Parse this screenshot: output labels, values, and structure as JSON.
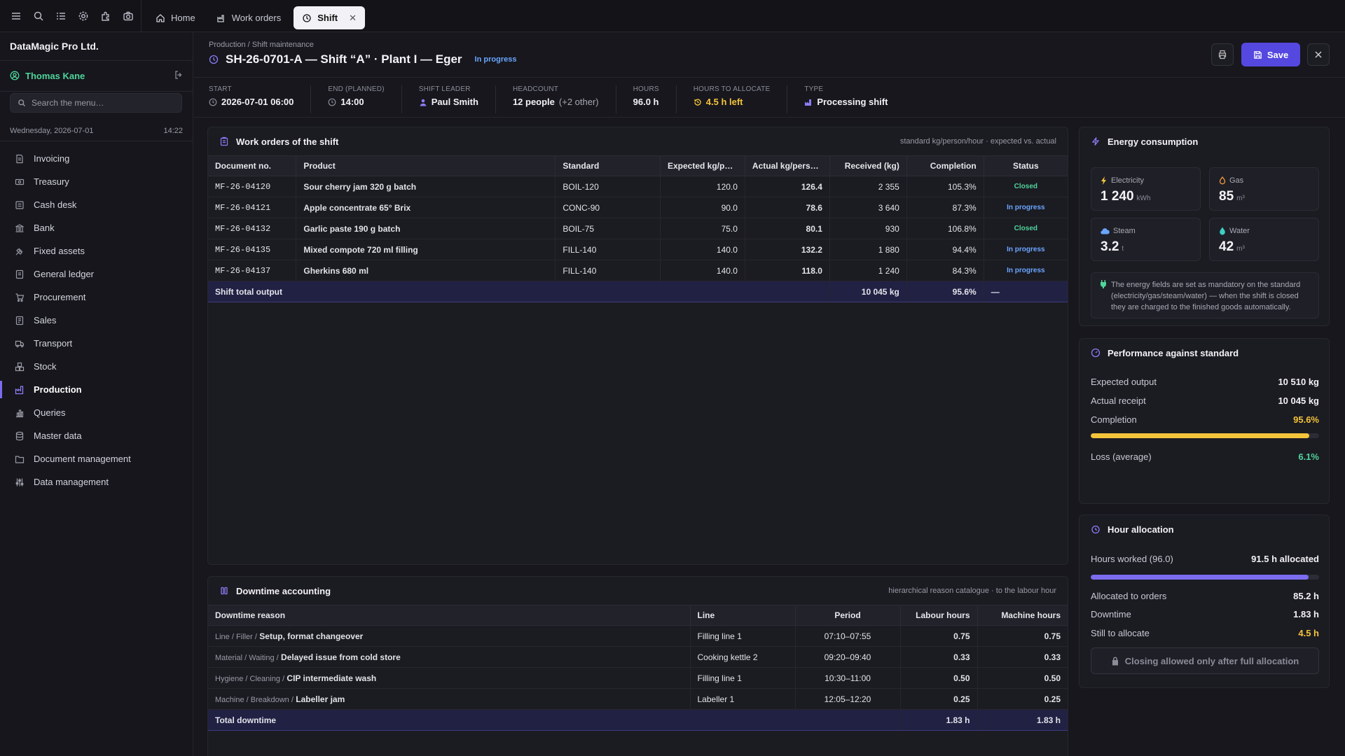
{
  "tabs": [
    {
      "label": "Home",
      "icon": "home-icon"
    },
    {
      "label": "Work orders",
      "icon": "work-orders-icon"
    },
    {
      "label": "Shift",
      "icon": "shift-icon",
      "close": "✕"
    }
  ],
  "sidebar": {
    "company": "DataMagic Pro Ltd.",
    "user": "Thomas Kane",
    "search_placeholder": "Search the menu…",
    "date": "Wednesday, 2026-07-01",
    "time": "14:22",
    "items": [
      {
        "label": "Invoicing",
        "icon": "invoice-icon"
      },
      {
        "label": "Treasury",
        "icon": "treasury-icon"
      },
      {
        "label": "Cash desk",
        "icon": "cash-desk-icon"
      },
      {
        "label": "Bank",
        "icon": "bank-icon"
      },
      {
        "label": "Fixed assets",
        "icon": "fixed-assets-icon"
      },
      {
        "label": "General ledger",
        "icon": "ledger-icon"
      },
      {
        "label": "Procurement",
        "icon": "cart-icon"
      },
      {
        "label": "Sales",
        "icon": "sales-icon"
      },
      {
        "label": "Transport",
        "icon": "truck-icon"
      },
      {
        "label": "Stock",
        "icon": "stock-icon"
      },
      {
        "label": "Production",
        "icon": "factory-icon",
        "active": true
      },
      {
        "label": "Queries",
        "icon": "chart-icon"
      },
      {
        "label": "Master data",
        "icon": "database-icon"
      },
      {
        "label": "Document management",
        "icon": "folder-icon"
      },
      {
        "label": "Data management",
        "icon": "sliders-icon"
      }
    ]
  },
  "header": {
    "breadcrumb": "Production / Shift maintenance",
    "title": "SH-26-0701-A — Shift “A” · Plant I — Eger",
    "state": "In progress",
    "save_label": "Save"
  },
  "stats": [
    {
      "key": "Start",
      "value": "2026-07-01 06:00",
      "icon": "clock-icon"
    },
    {
      "key": "End (planned)",
      "value": "14:00",
      "icon": "clock-icon"
    },
    {
      "key": "Shift leader",
      "value": "Paul Smith",
      "icon": "person-icon"
    },
    {
      "key": "Headcount",
      "value": "12 people",
      "extra": "(+2 other)"
    },
    {
      "key": "Hours",
      "value": "96.0 h"
    },
    {
      "key": "Hours to allocate",
      "value": "4.5 h left",
      "icon": "history-icon"
    },
    {
      "key": "Type",
      "value": "Processing shift",
      "icon": "factory-icon"
    }
  ],
  "work_orders": {
    "title": "Work orders of the shift",
    "note": "standard kg/person/hour · expected vs. actual",
    "columns": [
      "Document no.",
      "Product",
      "Standard",
      "Expected kg/p…",
      "Actual kg/pers…",
      "Received (kg)",
      "Completion",
      "Status"
    ],
    "rows": [
      [
        "MF-26-04120",
        "Sour cherry jam 320 g batch",
        "BOIL-120",
        "120.0",
        "126.4",
        "2 355",
        "105.3%",
        "Closed"
      ],
      [
        "MF-26-04121",
        "Apple concentrate 65° Brix",
        "CONC-90",
        "90.0",
        "78.6",
        "3 640",
        "87.3%",
        "In progress"
      ],
      [
        "MF-26-04132",
        "Garlic paste 190 g batch",
        "BOIL-75",
        "75.0",
        "80.1",
        "930",
        "106.8%",
        "Closed"
      ],
      [
        "MF-26-04135",
        "Mixed compote 720 ml filling",
        "FILL-140",
        "140.0",
        "132.2",
        "1 880",
        "94.4%",
        "In progress"
      ],
      [
        "MF-26-04137",
        "Gherkins 680 ml",
        "FILL-140",
        "140.0",
        "118.0",
        "1 240",
        "84.3%",
        "In progress"
      ]
    ],
    "total": {
      "label": "Shift total output",
      "received": "10 045 kg",
      "completion": "95.6%",
      "status": "—"
    }
  },
  "downtime": {
    "title": "Downtime accounting",
    "note": "hierarchical reason catalogue · to the labour hour",
    "columns": [
      "Downtime reason",
      "Line",
      "Period",
      "Labour hours",
      "Machine hours"
    ],
    "rows": [
      {
        "path": "Line / Filler /",
        "reason": "Setup, format changeover",
        "line": "Filling line 1",
        "period": "07:10–07:55",
        "labour": "0.75",
        "machine": "0.75"
      },
      {
        "path": "Material / Waiting /",
        "reason": "Delayed issue from cold store",
        "line": "Cooking kettle 2",
        "period": "09:20–09:40",
        "labour": "0.33",
        "machine": "0.33"
      },
      {
        "path": "Hygiene / Cleaning /",
        "reason": "CIP intermediate wash",
        "line": "Filling line 1",
        "period": "10:30–11:00",
        "labour": "0.50",
        "machine": "0.50"
      },
      {
        "path": "Machine / Breakdown /",
        "reason": "Labeller jam",
        "line": "Labeller 1",
        "period": "12:05–12:20",
        "labour": "0.25",
        "machine": "0.25"
      }
    ],
    "total": {
      "label": "Total downtime",
      "labour": "1.83 h",
      "machine": "1.83 h"
    }
  },
  "energy": {
    "title": "Energy consumption",
    "tiles": [
      {
        "label": "Electricity",
        "value": "1 240",
        "unit": "kWh",
        "icon": "bolt-icon",
        "color": "#f4c43b"
      },
      {
        "label": "Gas",
        "value": "85",
        "unit": "m³",
        "icon": "flame-icon",
        "color": "#f59a3b"
      },
      {
        "label": "Steam",
        "value": "3.2",
        "unit": "t",
        "icon": "cloud-icon",
        "color": "#6aa6ff"
      },
      {
        "label": "Water",
        "value": "42",
        "unit": "m³",
        "icon": "drop-icon",
        "color": "#3bd0c4"
      }
    ],
    "note": "The energy fields are set as mandatory on the standard (electricity/gas/steam/water) — when the shift is closed they are charged to the finished goods automatically."
  },
  "performance": {
    "title": "Performance against standard",
    "expected_label": "Expected output",
    "expected": "10 510 kg",
    "actual_label": "Actual receipt",
    "actual": "10 045 kg",
    "completion_label": "Completion",
    "completion": "95.6%",
    "completion_fraction": 0.956,
    "loss_label": "Loss (average)",
    "loss": "6.1%"
  },
  "hours": {
    "title": "Hour allocation",
    "worked_label": "Hours worked (96.0)",
    "worked": "91.5 h allocated",
    "allocated_fraction": 0.953,
    "orders_label": "Allocated to orders",
    "orders": "85.2 h",
    "downtime_label": "Downtime",
    "downtime": "1.83 h",
    "still_label": "Still to allocate",
    "still": "4.5 h",
    "lock_label": "Closing allowed only after full allocation"
  },
  "colors": {
    "accent": "#5548e0",
    "green": "#4fd49a",
    "blue": "#6aa6ff",
    "yellow": "#f4c43b"
  }
}
